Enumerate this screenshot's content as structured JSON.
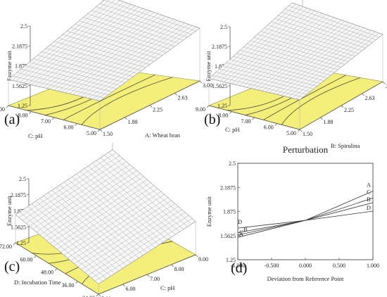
{
  "chart_data": [
    {
      "panel": "(a)",
      "type": "surface3d",
      "zlabel": "Enzyme unit",
      "zticks": [
        "1.25",
        "1.5625",
        "1.875",
        "2.1875",
        "2.5"
      ],
      "xlabel": "A: Wheat bran",
      "xticks": [
        "1.50",
        "1.88",
        "2.25",
        "2.63",
        "3.00"
      ],
      "ylabel": "C: pH",
      "yticks": [
        "5.00",
        "6.00",
        "7.00",
        "8.00",
        "9.00"
      ],
      "zlim": [
        1.25,
        2.5
      ],
      "surface_corners": {
        "x_low_y_low": 1.7,
        "x_high_y_low": 2.08,
        "x_low_y_high": 1.66,
        "x_high_y_high": 2.2
      }
    },
    {
      "panel": "(b)",
      "type": "surface3d",
      "zlabel": "Enzyme unit",
      "zticks": [
        "1.25",
        "1.5625",
        "1.875",
        "2.1875",
        "2.5"
      ],
      "xlabel": "B: Spirulina",
      "xticks": [
        "1.50",
        "1.88",
        "2.25",
        "2.63",
        "3.00"
      ],
      "ylabel": "C: pH",
      "yticks": [
        "5.00",
        "6.00",
        "7.00",
        "8.00",
        "9.00"
      ],
      "zlim": [
        1.25,
        2.5
      ],
      "surface_corners": {
        "x_low_y_low": 1.72,
        "x_high_y_low": 2.0,
        "x_low_y_high": 1.68,
        "x_high_y_high": 2.12
      }
    },
    {
      "panel": "(c)",
      "type": "surface3d",
      "zlabel": "Enzyme unit",
      "zticks": [
        "1.25",
        "1.5625",
        "1.875",
        "2.1875",
        "2.5"
      ],
      "xlabel": "C: pH",
      "xticks": [
        "5.00",
        "6.00",
        "7.00",
        "8.00",
        "9.00"
      ],
      "ylabel": "D: Incubation Time",
      "yticks": [
        "24.00",
        "36.00",
        "48.00",
        "60.00",
        "72.00"
      ],
      "zlim": [
        1.25,
        2.5
      ],
      "surface_corners": {
        "x_low_y_low": 1.45,
        "x_high_y_low": 1.9,
        "x_low_y_high": 1.8,
        "x_high_y_high": 2.3
      }
    },
    {
      "panel": "(d)",
      "type": "line",
      "title": "Perturbation",
      "xlabel": "Deviation from Reference Point",
      "ylabel": "Enzyme unit",
      "xlim": [
        -1,
        1
      ],
      "ylim": [
        1.25,
        2.5
      ],
      "xticks": [
        "-1.000",
        "-0.500",
        "0.000",
        "0.500",
        "1.000"
      ],
      "yticks": [
        "1.25",
        "1.5625",
        "1.875",
        "2.1875",
        "2.5"
      ],
      "series": [
        {
          "name": "A",
          "x": [
            -1,
            0,
            1
          ],
          "y": [
            1.54,
            1.76,
            2.14
          ]
        },
        {
          "name": "B",
          "x": [
            -1,
            0,
            1
          ],
          "y": [
            1.6,
            1.76,
            1.99
          ]
        },
        {
          "name": "C",
          "x": [
            -1,
            0,
            1
          ],
          "y": [
            1.57,
            1.76,
            2.05
          ]
        },
        {
          "name": "D",
          "x": [
            -1,
            0,
            1
          ],
          "y": [
            1.66,
            1.76,
            1.88
          ]
        }
      ]
    }
  ]
}
